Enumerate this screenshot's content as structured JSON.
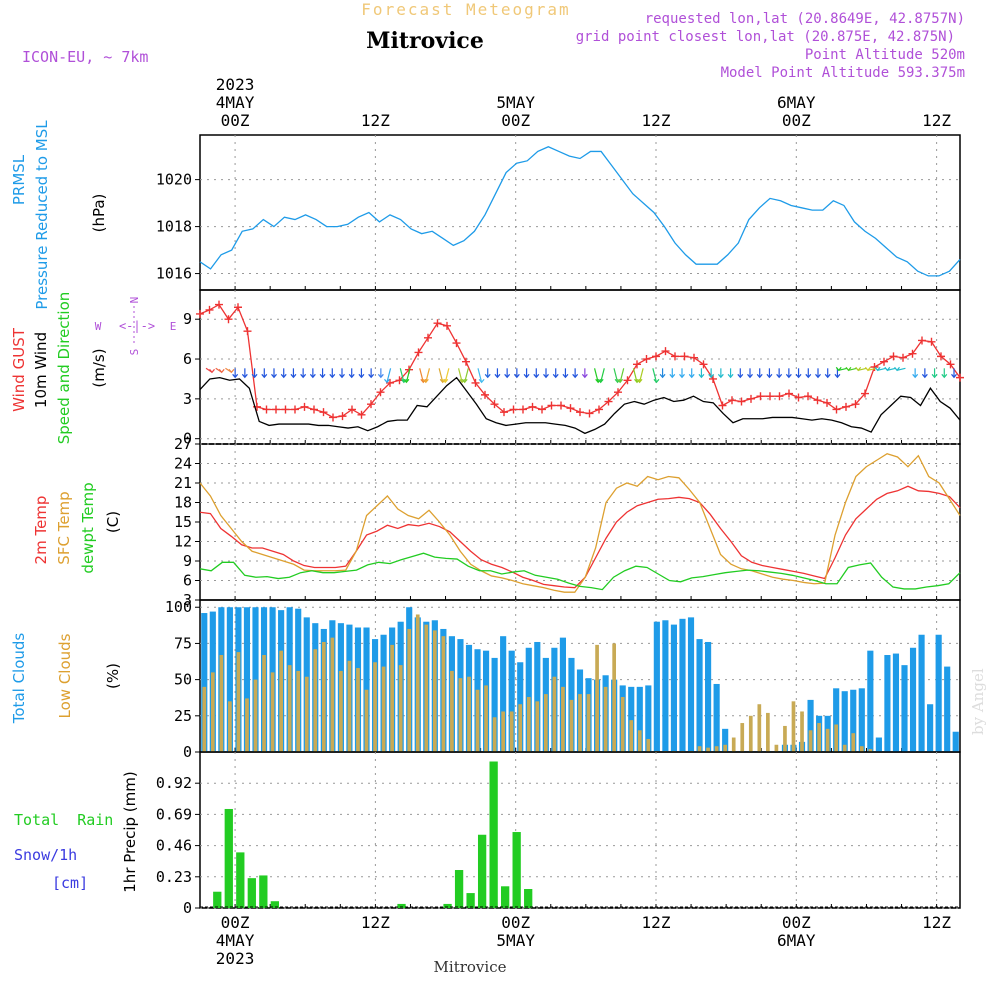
{
  "header": {
    "forecast_title": "Forecast Meteogram",
    "location": "Mitrovice",
    "model": "ICON-EU, ~ 7km",
    "requested": "requested lon,lat (20.8649E, 42.8757N)",
    "grid_point": "grid point closest lon,lat (20.875E, 42.875N)",
    "point_altitude": "Point Altitude 520m",
    "model_altitude": "Model Point Altitude 593.375m",
    "footer_location": "Mitrovice",
    "watermark": "by Angel"
  },
  "colors": {
    "blue": "#1e9be8",
    "red": "#ee3333",
    "orange": "#dda030",
    "green": "#22cc22",
    "purple": "#b050d8",
    "black": "#000000",
    "gold": "#f0c878",
    "snow_blue": "#3a3ae0",
    "low_cloud": "#c8aa55"
  },
  "time_axis": {
    "start": "2023-05-03T21Z",
    "step_hours": 1,
    "n_hours": 65,
    "top": [
      {
        "h": 3,
        "lines": [
          "2023",
          "4MAY",
          "00Z"
        ]
      },
      {
        "h": 15,
        "lines": [
          "12Z"
        ]
      },
      {
        "h": 27,
        "lines": [
          "5MAY",
          "00Z"
        ]
      },
      {
        "h": 39,
        "lines": [
          "12Z"
        ]
      },
      {
        "h": 51,
        "lines": [
          "6MAY",
          "00Z"
        ]
      },
      {
        "h": 63,
        "lines": [
          "12Z"
        ]
      }
    ],
    "bottom": [
      {
        "h": 3,
        "lines": [
          "00Z",
          "4MAY",
          "2023"
        ]
      },
      {
        "h": 15,
        "lines": [
          "12Z"
        ]
      },
      {
        "h": 27,
        "lines": [
          "00Z",
          "5MAY"
        ]
      },
      {
        "h": 39,
        "lines": [
          "12Z"
        ]
      },
      {
        "h": 51,
        "lines": [
          "00Z",
          "6MAY"
        ]
      },
      {
        "h": 63,
        "lines": [
          "12Z"
        ]
      }
    ]
  },
  "chart_data": [
    {
      "type": "line",
      "id": "pressure",
      "title": "PRMSL Pressure Reduced to MSL",
      "side_labels": [
        "PRMSL",
        "Pressure Reduced to MSL"
      ],
      "ylabel": "(hPa)",
      "ylim": [
        1015.3,
        1021.9
      ],
      "yticks": [
        1016,
        1018,
        1020
      ],
      "series": [
        {
          "name": "PRMSL",
          "color": "#1e9be8",
          "values": [
            1016.5,
            1016.2,
            1016.8,
            1017.0,
            1017.8,
            1017.9,
            1018.3,
            1018.0,
            1018.4,
            1018.3,
            1018.5,
            1018.3,
            1018.0,
            1018.0,
            1018.1,
            1018.4,
            1018.6,
            1018.2,
            1018.5,
            1018.3,
            1017.9,
            1017.7,
            1017.8,
            1017.5,
            1017.2,
            1017.4,
            1017.8,
            1018.5,
            1019.4,
            1020.3,
            1020.7,
            1020.8,
            1021.2,
            1021.4,
            1021.2,
            1021.0,
            1020.9,
            1021.2,
            1021.2,
            1020.6,
            1020.0,
            1019.4,
            1019.0,
            1018.6,
            1018.0,
            1017.3,
            1016.8,
            1016.4,
            1016.4,
            1016.4,
            1016.8,
            1017.3,
            1018.3,
            1018.8,
            1019.2,
            1019.1,
            1018.9,
            1018.8,
            1018.7,
            1018.7,
            1019.1,
            1018.9,
            1018.2,
            1017.8,
            1017.5,
            1017.1,
            1016.7,
            1016.5,
            1016.1,
            1015.9,
            1015.9,
            1016.1,
            1016.6
          ]
        }
      ]
    },
    {
      "type": "line",
      "id": "wind",
      "title": "Wind GUST / 10m Wind Speed and Direction",
      "side_labels": [
        "Wind GUST",
        "10m Wind",
        "Speed and Direction"
      ],
      "ylabel": "(m/s)",
      "compass": {
        "n": "N",
        "s": "S",
        "w": "W",
        "e": "E",
        "arrow": "<-|->"
      },
      "ylim": [
        -0.4,
        11.2
      ],
      "yticks": [
        0,
        3,
        6,
        9
      ],
      "series": [
        {
          "name": "Wind GUST",
          "color": "#ee3333",
          "marker": "+",
          "values": [
            9.4,
            9.7,
            10.1,
            9.0,
            9.9,
            8.1,
            2.4,
            2.2,
            2.2,
            2.2,
            2.2,
            2.4,
            2.2,
            2.0,
            1.6,
            1.7,
            2.2,
            1.8,
            2.6,
            3.5,
            4.2,
            4.4,
            5.2,
            6.5,
            7.6,
            8.7,
            8.5,
            7.2,
            5.8,
            4.2,
            3.3,
            2.6,
            2.0,
            2.2,
            2.2,
            2.4,
            2.2,
            2.5,
            2.5,
            2.3,
            2.0,
            1.9,
            2.2,
            2.8,
            3.5,
            4.4,
            5.6,
            6.0,
            6.2,
            6.6,
            6.2,
            6.2,
            6.1,
            5.6,
            4.5,
            2.5,
            2.9,
            2.8,
            3.0,
            3.2,
            3.2,
            3.2,
            3.4,
            3.1,
            3.2,
            2.9,
            2.7,
            2.2,
            2.4,
            2.6,
            3.4,
            5.4,
            5.8,
            6.2,
            6.1,
            6.4,
            7.4,
            7.3,
            6.2,
            5.6,
            4.6
          ]
        },
        {
          "name": "10m Wind",
          "color": "#000000",
          "values": [
            3.7,
            4.5,
            4.6,
            4.4,
            4.5,
            3.8,
            1.3,
            1.0,
            1.1,
            1.1,
            1.1,
            1.1,
            1.0,
            1.0,
            0.9,
            0.8,
            0.9,
            0.6,
            0.9,
            1.3,
            1.4,
            1.4,
            2.5,
            2.4,
            3.2,
            4.0,
            4.6,
            3.6,
            2.6,
            1.5,
            1.2,
            1.0,
            1.1,
            1.2,
            1.2,
            1.2,
            1.1,
            1.0,
            0.8,
            0.4,
            0.7,
            1.1,
            1.9,
            2.6,
            2.8,
            2.6,
            2.9,
            3.1,
            2.8,
            2.9,
            3.2,
            2.8,
            2.7,
            1.9,
            1.2,
            1.5,
            1.5,
            1.5,
            1.6,
            1.6,
            1.6,
            1.5,
            1.4,
            1.5,
            1.4,
            1.2,
            0.9,
            0.8,
            0.5,
            1.8,
            2.5,
            3.2,
            3.1,
            2.5,
            3.8,
            2.8,
            2.3,
            1.4
          ]
        }
      ],
      "wind_arrows": {
        "speed_and_direction": "10m wind barbs",
        "colors_by_hour": [
          "#ee4444",
          "#ee6644",
          "#ee8844",
          "#2255dd",
          "#2255dd",
          "#2255dd",
          "#2255dd",
          "#2255dd",
          "#2255dd",
          "#2255dd",
          "#2255dd",
          "#2255dd",
          "#2255dd",
          "#2255dd",
          "#2255dd",
          "#2255dd",
          "#2255dd",
          "#2255dd",
          "#4488ee",
          "#33aaee",
          "#22cc66",
          "#22cc22",
          "#ee8833",
          "#eeaa33",
          "#ddaa33",
          "#eecc33",
          "#aacc33",
          "#88cc33",
          "#44bbee",
          "#2266dd",
          "#2255dd",
          "#2255dd",
          "#2255dd",
          "#2255dd",
          "#2255dd",
          "#2255dd",
          "#2255dd",
          "#2255dd",
          "#2255dd",
          "#8844dd",
          "#22cc22",
          "#22cc44",
          "#33cc55",
          "#66cc33",
          "#88cc22",
          "#aacc22",
          "#22cc66",
          "#2288dd",
          "#33aaee",
          "#33aaee",
          "#33aaee",
          "#22bbcc",
          "#22bbcc",
          "#22bbcc",
          "#22bbcc",
          "#2255dd",
          "#2255dd",
          "#2255dd",
          "#2255dd",
          "#2255dd",
          "#2255dd",
          "#2255dd",
          "#2255dd",
          "#2255dd",
          "#2255dd",
          "#2255dd",
          "#22cc22",
          "#44cc22",
          "#aacc22",
          "#cccc22",
          "#22bbcc",
          "#22bbcc",
          "#22bbcc",
          "#33aaee",
          "#2255dd",
          "#22cc88",
          "#22cc88",
          "#2255dd"
        ]
      }
    },
    {
      "type": "line",
      "id": "temperature",
      "title": "2m Temp / SFC Temp / dewpt Temp",
      "side_labels": [
        "2m Temp",
        "SFC Temp",
        "dewpt Temp"
      ],
      "ylabel": "(C)",
      "ylim": [
        3,
        27
      ],
      "yticks": [
        3,
        6,
        9,
        12,
        15,
        18,
        21,
        24,
        27
      ],
      "series": [
        {
          "name": "2m Temp",
          "color": "#ee3333",
          "values": [
            16.5,
            16.3,
            14.0,
            12.8,
            11.5,
            11.0,
            11.0,
            10.5,
            10.0,
            9.0,
            8.3,
            8.0,
            8.0,
            8.0,
            8.2,
            10.5,
            13.0,
            13.6,
            14.5,
            14.0,
            14.6,
            14.4,
            14.8,
            14.3,
            13.5,
            12.0,
            10.5,
            9.2,
            8.5,
            8.0,
            7.3,
            6.5,
            6.0,
            5.4,
            5.2,
            5.0,
            4.9,
            6.5,
            9.5,
            12.5,
            15.0,
            16.5,
            17.5,
            18.0,
            18.5,
            18.6,
            18.8,
            18.6,
            18.0,
            16.2,
            14.0,
            12.0,
            9.8,
            8.8,
            8.3,
            8.0,
            7.7,
            7.4,
            7.1,
            6.7,
            6.3,
            9.5,
            13.0,
            15.5,
            17.0,
            18.5,
            19.4,
            19.8,
            20.5,
            19.8,
            19.7,
            19.4,
            18.9,
            17.2
          ]
        },
        {
          "name": "SFC Temp",
          "color": "#dda030",
          "values": [
            21.0,
            19.0,
            16.0,
            14.0,
            12.0,
            10.5,
            10.0,
            9.5,
            9.0,
            8.5,
            7.6,
            7.5,
            7.5,
            7.5,
            7.6,
            10.5,
            16.0,
            17.5,
            19.0,
            17.0,
            16.0,
            15.5,
            16.8,
            15.0,
            13.0,
            10.5,
            8.5,
            7.5,
            6.7,
            6.4,
            6.0,
            5.5,
            5.2,
            4.9,
            4.5,
            4.2,
            4.2,
            6.5,
            11.0,
            18.0,
            20.2,
            21.0,
            20.5,
            22.0,
            21.5,
            22.0,
            21.8,
            20.0,
            18.0,
            14.0,
            10.0,
            8.5,
            7.8,
            7.5,
            7.0,
            6.5,
            6.2,
            6.0,
            5.7,
            5.5,
            5.6,
            13.0,
            18.0,
            22.0,
            23.5,
            24.5,
            25.5,
            25.0,
            23.5,
            25.2,
            22.0,
            21.0,
            18.5,
            16.0
          ]
        },
        {
          "name": "dewpt Temp",
          "color": "#22cc22",
          "values": [
            7.8,
            7.5,
            8.8,
            8.8,
            6.8,
            6.5,
            6.6,
            6.3,
            6.5,
            7.2,
            7.5,
            7.2,
            7.2,
            7.4,
            7.6,
            8.4,
            8.8,
            8.6,
            9.2,
            9.7,
            10.2,
            9.6,
            9.4,
            9.3,
            8.2,
            7.5,
            7.5,
            7.0,
            7.3,
            7.5,
            6.8,
            6.5,
            6.2,
            5.6,
            5.1,
            4.9,
            4.6,
            6.5,
            7.5,
            8.2,
            8.0,
            7.0,
            6.0,
            5.8,
            6.4,
            6.6,
            6.9,
            7.2,
            7.4,
            7.6,
            7.5,
            7.3,
            7.1,
            6.8,
            6.4,
            6.0,
            5.5,
            5.5,
            8.0,
            8.4,
            8.7,
            6.5,
            5.0,
            4.7,
            4.7,
            5.0,
            5.2,
            5.5,
            7.2
          ]
        }
      ]
    },
    {
      "type": "bar",
      "id": "clouds",
      "title": "Total Clouds / Low Clouds",
      "side_labels": [
        "Total Clouds",
        "Low Clouds"
      ],
      "ylabel": "(%)",
      "ylim": [
        0,
        105
      ],
      "yticks": [
        0,
        25,
        50,
        75,
        100
      ],
      "series": [
        {
          "name": "Total Clouds",
          "color": "#1e9be8",
          "values": [
            96,
            97,
            100,
            100,
            100,
            100,
            100,
            100,
            100,
            98,
            100,
            99,
            93,
            89,
            85,
            91,
            89,
            88,
            86,
            86,
            78,
            81,
            86,
            90,
            100,
            93,
            90,
            91,
            85,
            80,
            78,
            74,
            71,
            70,
            65,
            80,
            70,
            62,
            72,
            76,
            65,
            72,
            79,
            65,
            57,
            51,
            50,
            53,
            50,
            46,
            45,
            45,
            46,
            90,
            91,
            88,
            92,
            93,
            78,
            76,
            47,
            16,
            0,
            0,
            0,
            0,
            0,
            0,
            5,
            5,
            7,
            36,
            25,
            25,
            44,
            42,
            43,
            44,
            70,
            10,
            67,
            68,
            60,
            72,
            81,
            33,
            81,
            59,
            14
          ]
        },
        {
          "name": "Low Clouds",
          "color": "#c8aa55",
          "values": [
            45,
            55,
            67,
            35,
            69,
            37,
            50,
            67,
            55,
            70,
            60,
            56,
            52,
            71,
            76,
            79,
            56,
            63,
            58,
            43,
            62,
            59,
            74,
            60,
            85,
            95,
            88,
            84,
            80,
            56,
            51,
            52,
            43,
            46,
            24,
            28,
            28,
            33,
            38,
            35,
            40,
            52,
            45,
            36,
            40,
            40,
            74,
            45,
            75,
            38,
            22,
            15,
            9,
            0,
            0,
            0,
            0,
            0,
            4,
            3,
            4,
            5,
            10,
            20,
            25,
            33,
            27,
            5,
            18,
            35,
            28,
            15,
            20,
            16,
            19,
            5,
            13,
            4,
            2
          ]
        }
      ]
    },
    {
      "type": "bar",
      "id": "precip",
      "title": "1hr Precip",
      "side_labels": [
        "Total  Rain",
        "Snow/1h",
        "[cm]"
      ],
      "ylabel": "1hr Precip (mm)",
      "ylim": [
        0,
        1.15
      ],
      "yticks": [
        0,
        0.23,
        0.46,
        0.69,
        0.92
      ],
      "ytick_labels": [
        "0",
        "0.23",
        "0.46",
        "0.69",
        "0.92"
      ],
      "series": [
        {
          "name": "Total Rain",
          "color": "#22cc22",
          "values": [
            0,
            0.12,
            0.73,
            0.41,
            0.22,
            0.24,
            0.05,
            0,
            0,
            0,
            0,
            0,
            0,
            0,
            0,
            0,
            0,
            0.03,
            0,
            0,
            0,
            0.03,
            0.28,
            0.11,
            0.54,
            1.08,
            0.16,
            0.56,
            0.14,
            0,
            0,
            0,
            0,
            0,
            0,
            0,
            0,
            0,
            0,
            0,
            0,
            0,
            0,
            0,
            0,
            0,
            0,
            0,
            0,
            0,
            0,
            0,
            0,
            0,
            0,
            0,
            0,
            0,
            0,
            0,
            0,
            0,
            0,
            0,
            0,
            0
          ]
        }
      ]
    }
  ]
}
